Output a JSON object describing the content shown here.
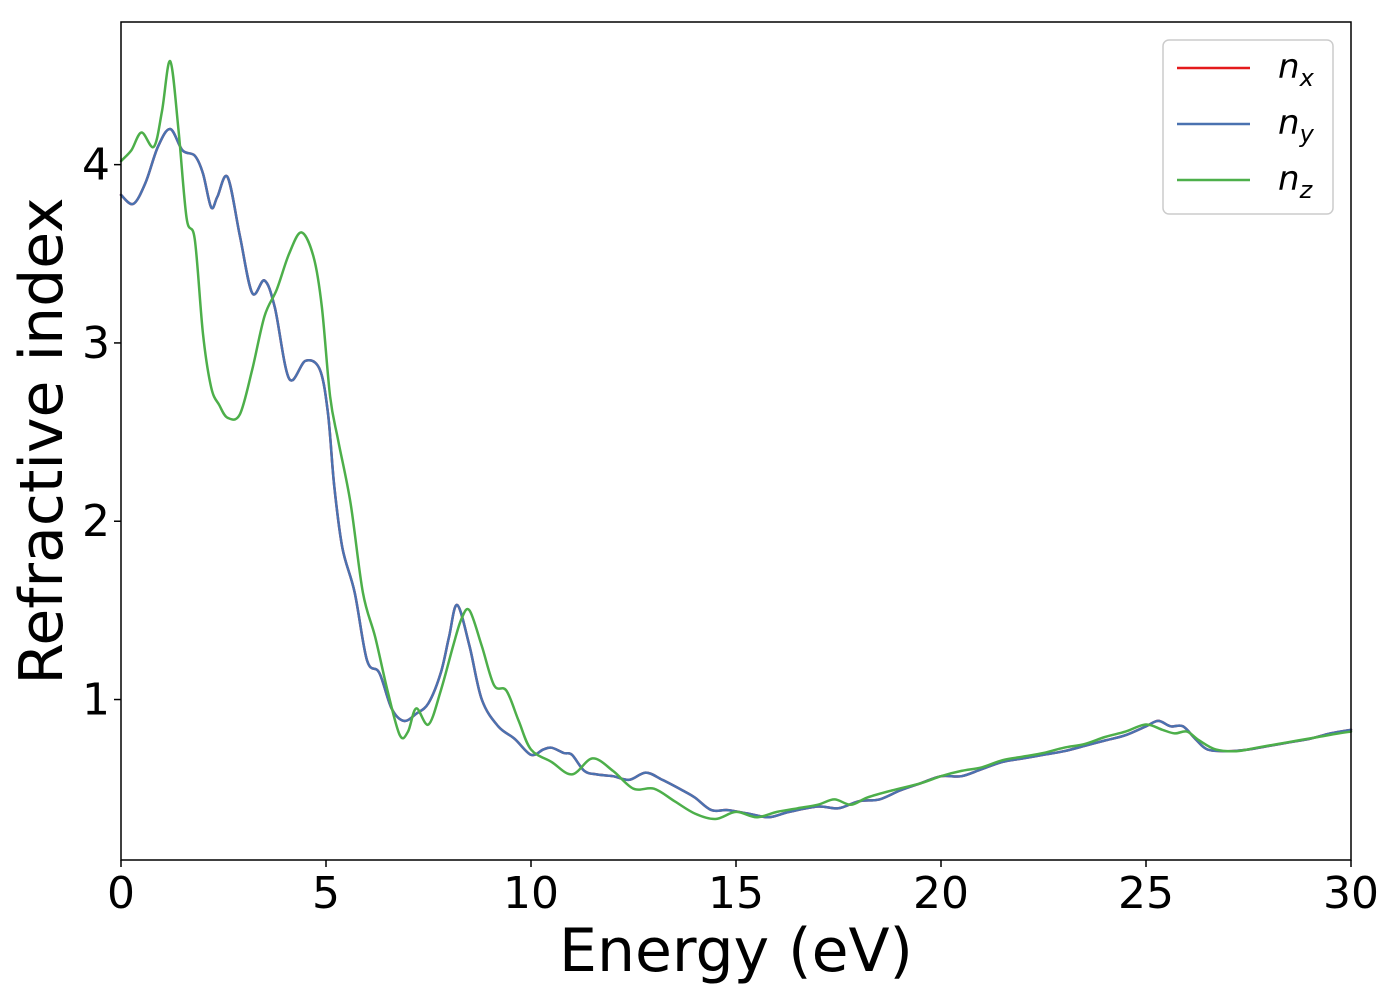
{
  "chart_data": {
    "type": "line",
    "title": "",
    "xlabel": "Energy (eV)",
    "ylabel": "Refractive index",
    "xlim": [
      0,
      30
    ],
    "ylim": [
      0.1,
      4.8
    ],
    "xticks": [
      0,
      5,
      10,
      15,
      20,
      25,
      30
    ],
    "yticks": [
      1,
      2,
      3,
      4
    ],
    "grid": false,
    "legend_position": "top-right",
    "series": [
      {
        "name": "n_x",
        "label_base": "n",
        "label_sub": "x",
        "color": "#e41a1c",
        "x": [
          0,
          0.3,
          0.6,
          0.9,
          1.2,
          1.5,
          1.8,
          2.0,
          2.2,
          2.35,
          2.6,
          2.9,
          3.2,
          3.5,
          3.75,
          4.1,
          4.5,
          4.85,
          5.05,
          5.2,
          5.4,
          5.7,
          6.0,
          6.3,
          6.6,
          6.9,
          7.2,
          7.5,
          7.8,
          8.0,
          8.2,
          8.5,
          8.8,
          9.2,
          9.6,
          10.0,
          10.3,
          10.5,
          10.8,
          11.0,
          11.3,
          11.6,
          12.0,
          12.4,
          12.8,
          13.2,
          13.7,
          14.0,
          14.4,
          14.8,
          15.3,
          15.8,
          16.3,
          17.0,
          17.5,
          18.0,
          18.5,
          19.0,
          19.5,
          20.0,
          20.5,
          21.0,
          21.5,
          22.0,
          22.5,
          23.0,
          23.5,
          24.0,
          24.5,
          25.0,
          25.3,
          25.6,
          25.9,
          26.2,
          26.5,
          27.0,
          27.5,
          28.0,
          28.5,
          29.0,
          29.5,
          30.0
        ],
        "y": [
          3.83,
          3.78,
          3.9,
          4.1,
          4.2,
          4.08,
          4.05,
          3.95,
          3.76,
          3.82,
          3.93,
          3.6,
          3.28,
          3.35,
          3.2,
          2.8,
          2.9,
          2.85,
          2.6,
          2.2,
          1.85,
          1.6,
          1.22,
          1.15,
          0.95,
          0.88,
          0.92,
          0.98,
          1.15,
          1.35,
          1.53,
          1.3,
          1.0,
          0.85,
          0.78,
          0.69,
          0.72,
          0.73,
          0.7,
          0.69,
          0.6,
          0.58,
          0.57,
          0.55,
          0.59,
          0.55,
          0.49,
          0.45,
          0.38,
          0.38,
          0.36,
          0.34,
          0.37,
          0.4,
          0.39,
          0.43,
          0.44,
          0.49,
          0.53,
          0.57,
          0.57,
          0.61,
          0.65,
          0.67,
          0.69,
          0.71,
          0.74,
          0.77,
          0.8,
          0.85,
          0.88,
          0.85,
          0.85,
          0.78,
          0.72,
          0.71,
          0.72,
          0.74,
          0.76,
          0.78,
          0.81,
          0.83
        ]
      },
      {
        "name": "n_y",
        "label_base": "n",
        "label_sub": "y",
        "color": "#4a72b0",
        "x": [
          0,
          0.3,
          0.6,
          0.9,
          1.2,
          1.5,
          1.8,
          2.0,
          2.2,
          2.35,
          2.6,
          2.9,
          3.2,
          3.5,
          3.75,
          4.1,
          4.5,
          4.85,
          5.05,
          5.2,
          5.4,
          5.7,
          6.0,
          6.3,
          6.6,
          6.9,
          7.2,
          7.5,
          7.8,
          8.0,
          8.2,
          8.5,
          8.8,
          9.2,
          9.6,
          10.0,
          10.3,
          10.5,
          10.8,
          11.0,
          11.3,
          11.6,
          12.0,
          12.4,
          12.8,
          13.2,
          13.7,
          14.0,
          14.4,
          14.8,
          15.3,
          15.8,
          16.3,
          17.0,
          17.5,
          18.0,
          18.5,
          19.0,
          19.5,
          20.0,
          20.5,
          21.0,
          21.5,
          22.0,
          22.5,
          23.0,
          23.5,
          24.0,
          24.5,
          25.0,
          25.3,
          25.6,
          25.9,
          26.2,
          26.5,
          27.0,
          27.5,
          28.0,
          28.5,
          29.0,
          29.5,
          30.0
        ],
        "y": [
          3.83,
          3.78,
          3.9,
          4.1,
          4.2,
          4.08,
          4.05,
          3.95,
          3.76,
          3.82,
          3.93,
          3.6,
          3.28,
          3.35,
          3.2,
          2.8,
          2.9,
          2.85,
          2.6,
          2.2,
          1.85,
          1.6,
          1.22,
          1.15,
          0.95,
          0.88,
          0.92,
          0.98,
          1.15,
          1.35,
          1.53,
          1.3,
          1.0,
          0.85,
          0.78,
          0.69,
          0.72,
          0.73,
          0.7,
          0.69,
          0.6,
          0.58,
          0.57,
          0.55,
          0.59,
          0.55,
          0.49,
          0.45,
          0.38,
          0.38,
          0.36,
          0.34,
          0.37,
          0.4,
          0.39,
          0.43,
          0.44,
          0.49,
          0.53,
          0.57,
          0.57,
          0.61,
          0.65,
          0.67,
          0.69,
          0.71,
          0.74,
          0.77,
          0.8,
          0.85,
          0.88,
          0.85,
          0.85,
          0.78,
          0.72,
          0.71,
          0.72,
          0.74,
          0.76,
          0.78,
          0.81,
          0.83
        ]
      },
      {
        "name": "n_z",
        "label_base": "n",
        "label_sub": "z",
        "color": "#4daf4a",
        "x": [
          0,
          0.25,
          0.5,
          0.8,
          1.0,
          1.2,
          1.4,
          1.6,
          1.8,
          2.0,
          2.2,
          2.4,
          2.6,
          2.9,
          3.2,
          3.5,
          3.8,
          4.1,
          4.4,
          4.7,
          4.9,
          5.1,
          5.3,
          5.6,
          5.9,
          6.2,
          6.5,
          6.8,
          7.0,
          7.2,
          7.5,
          7.8,
          8.1,
          8.3,
          8.5,
          8.8,
          9.1,
          9.4,
          9.7,
          10.0,
          10.5,
          11.0,
          11.5,
          12.0,
          12.5,
          13.0,
          13.5,
          14.0,
          14.5,
          15.0,
          15.5,
          16.0,
          16.5,
          17.0,
          17.4,
          17.8,
          18.2,
          18.8,
          19.5,
          20.0,
          20.5,
          21.0,
          21.5,
          22.0,
          22.5,
          23.0,
          23.5,
          24.0,
          24.5,
          25.0,
          25.4,
          25.7,
          26.0,
          26.3,
          26.7,
          27.2,
          27.7,
          28.2,
          28.7,
          29.2,
          29.7,
          30.0
        ],
        "y": [
          4.02,
          4.08,
          4.18,
          4.1,
          4.3,
          4.58,
          4.2,
          3.7,
          3.58,
          3.05,
          2.75,
          2.65,
          2.58,
          2.6,
          2.85,
          3.15,
          3.3,
          3.5,
          3.62,
          3.48,
          3.2,
          2.7,
          2.45,
          2.1,
          1.6,
          1.35,
          1.05,
          0.8,
          0.82,
          0.95,
          0.86,
          1.05,
          1.3,
          1.45,
          1.5,
          1.3,
          1.08,
          1.05,
          0.88,
          0.72,
          0.65,
          0.58,
          0.67,
          0.6,
          0.5,
          0.5,
          0.43,
          0.36,
          0.33,
          0.37,
          0.34,
          0.37,
          0.39,
          0.41,
          0.44,
          0.41,
          0.45,
          0.49,
          0.53,
          0.57,
          0.6,
          0.62,
          0.66,
          0.68,
          0.7,
          0.73,
          0.75,
          0.79,
          0.82,
          0.86,
          0.83,
          0.81,
          0.82,
          0.77,
          0.72,
          0.71,
          0.73,
          0.75,
          0.77,
          0.79,
          0.81,
          0.82
        ]
      }
    ]
  }
}
